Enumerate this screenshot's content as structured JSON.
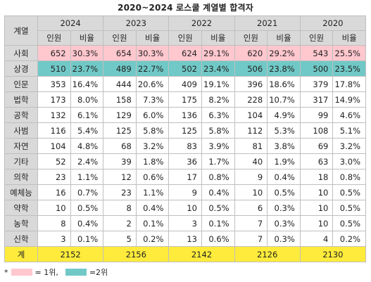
{
  "title": "2020~2024 로스쿨 계열별 합격자",
  "header": {
    "category_label": "계열",
    "years": [
      "2024",
      "2023",
      "2022",
      "2021",
      "2020"
    ],
    "sub_labels": [
      "인원",
      "비율"
    ]
  },
  "rows": [
    {
      "cat": "사회",
      "rank": 1,
      "cells": [
        "652",
        "30.3%",
        "654",
        "30.3%",
        "624",
        "29.1%",
        "620",
        "29.2%",
        "543",
        "25.5%"
      ]
    },
    {
      "cat": "상경",
      "rank": 2,
      "cells": [
        "510",
        "23.7%",
        "489",
        "22.7%",
        "502",
        "23.4%",
        "506",
        "23.8%",
        "500",
        "23.5%"
      ]
    },
    {
      "cat": "인문",
      "rank": 0,
      "cells": [
        "353",
        "16.4%",
        "444",
        "20.6%",
        "409",
        "19.1%",
        "396",
        "18.6%",
        "379",
        "17.8%"
      ]
    },
    {
      "cat": "법학",
      "rank": 0,
      "cells": [
        "173",
        "8.0%",
        "158",
        "7.3%",
        "175",
        "8.2%",
        "228",
        "10.7%",
        "317",
        "14.9%"
      ]
    },
    {
      "cat": "공학",
      "rank": 0,
      "cells": [
        "132",
        "6.1%",
        "129",
        "6.0%",
        "136",
        "6.3%",
        "104",
        "4.9%",
        "99",
        "4.6%"
      ]
    },
    {
      "cat": "사범",
      "rank": 0,
      "cells": [
        "116",
        "5.4%",
        "125",
        "5.8%",
        "125",
        "5.8%",
        "112",
        "5.3%",
        "108",
        "5.1%"
      ]
    },
    {
      "cat": "자연",
      "rank": 0,
      "cells": [
        "104",
        "4.8%",
        "68",
        "3.2%",
        "83",
        "3.9%",
        "81",
        "3.8%",
        "69",
        "3.2%"
      ]
    },
    {
      "cat": "기타",
      "rank": 0,
      "cells": [
        "52",
        "2.4%",
        "39",
        "1.8%",
        "36",
        "1.7%",
        "40",
        "1.9%",
        "63",
        "3.0%"
      ]
    },
    {
      "cat": "의학",
      "rank": 0,
      "cells": [
        "23",
        "1.1%",
        "12",
        "0.6%",
        "17",
        "0.8%",
        "9",
        "0.4%",
        "18",
        "0.8%"
      ]
    },
    {
      "cat": "예체능",
      "rank": 0,
      "cells": [
        "16",
        "0.7%",
        "23",
        "1.1%",
        "9",
        "0.4%",
        "10",
        "0.5%",
        "10",
        "0.5%"
      ]
    },
    {
      "cat": "약학",
      "rank": 0,
      "cells": [
        "10",
        "0.5%",
        "8",
        "0.4%",
        "10",
        "0.5%",
        "6",
        "0.3%",
        "10",
        "0.5%"
      ]
    },
    {
      "cat": "농학",
      "rank": 0,
      "cells": [
        "8",
        "0.4%",
        "2",
        "0.1%",
        "3",
        "0.1%",
        "7",
        "0.3%",
        "10",
        "0.5%"
      ]
    },
    {
      "cat": "신학",
      "rank": 0,
      "cells": [
        "3",
        "0.1%",
        "5",
        "0.2%",
        "13",
        "0.6%",
        "7",
        "0.3%",
        "4",
        "0.2%"
      ]
    }
  ],
  "total": {
    "label": "계",
    "values": [
      "2152",
      "2156",
      "2142",
      "2126",
      "2130"
    ]
  },
  "legend": {
    "asterisk": "*",
    "rank1_label": "= 1위,",
    "rank2_label": "=2위"
  },
  "colors": {
    "rank1": "#ffc7ce",
    "rank2": "#70c9c7",
    "total": "#ffeb3b",
    "header": "#d9d9d9"
  }
}
